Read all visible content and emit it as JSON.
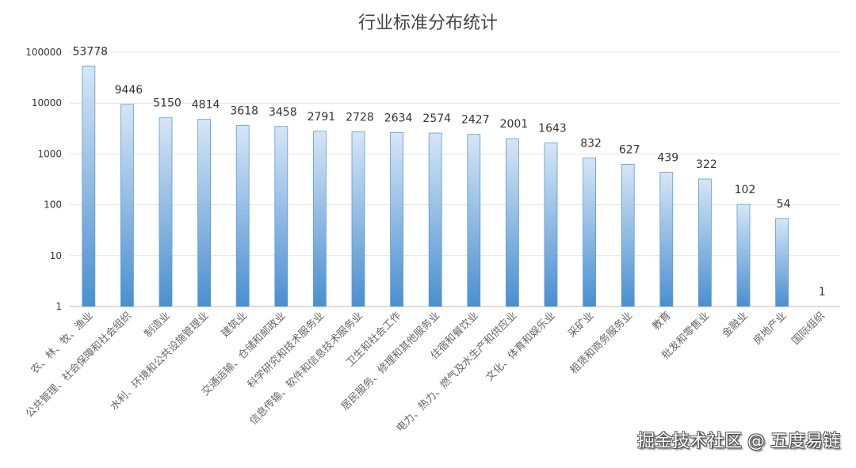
{
  "chart_data": {
    "type": "bar",
    "title": "行业标准分布统计",
    "xlabel": "",
    "ylabel": "",
    "yscale": "log",
    "ylim": [
      1,
      100000
    ],
    "yticks": [
      "1",
      "10",
      "100",
      "1000",
      "10000",
      "100000"
    ],
    "grid": true,
    "categories": [
      "农、林、牧、渔业",
      "公共管理、社会保障和社会组织",
      "制造业",
      "水利、环境和公共设施管理业",
      "建筑业",
      "交通运输、仓储和邮政业",
      "科学研究和技术服务业",
      "信息传输、软件和信息技术服务业",
      "卫生和社会工作",
      "居民服务、修理和其他服务业",
      "住宿和餐饮业",
      "电力、热力、燃气及水生产和供应业",
      "文化、体育和娱乐业",
      "采矿业",
      "租赁和商务服务业",
      "教育",
      "批发和零售业",
      "金融业",
      "房地产业",
      "国际组织"
    ],
    "values": [
      53778,
      9446,
      5150,
      4814,
      3618,
      3458,
      2791,
      2728,
      2634,
      2574,
      2427,
      2001,
      1643,
      832,
      627,
      439,
      322,
      102,
      54,
      1
    ],
    "bar_color_top": "#d6e6f6",
    "bar_color_bottom": "#4a8fd0"
  },
  "watermark": "掘金技术社区 @ 五度易链"
}
